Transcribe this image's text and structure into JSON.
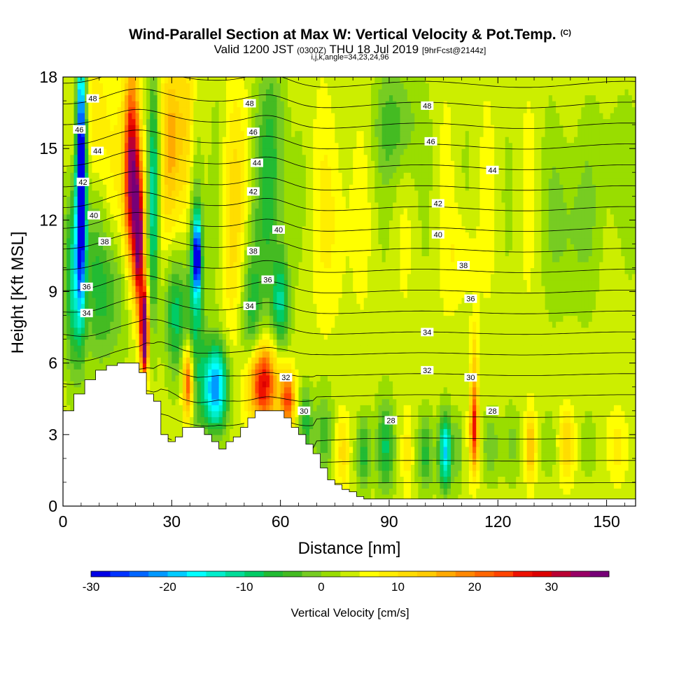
{
  "header": {
    "title": "Wind-Parallel Section at Max W: Vertical Velocity & Pot.Temp.",
    "copyright": "(C)",
    "valid_prefix": "Valid 1200 JST",
    "valid_utc": "(0300Z)",
    "valid_date": "THU 18 Jul 2019",
    "forecast": "[9hrFcst@2144z]",
    "indices": "i,j,k,angle=34,23,24,96"
  },
  "chart_data": {
    "type": "heatmap",
    "xlabel": "Distance [nm]",
    "ylabel": "Height [Kft MSL]",
    "xlim": [
      0,
      158
    ],
    "ylim": [
      0,
      18
    ],
    "xticks": [
      0,
      30,
      60,
      90,
      120,
      150
    ],
    "yticks": [
      0,
      3,
      6,
      9,
      12,
      15,
      18
    ],
    "colorbar": {
      "label": "Vertical Velocity [cm/s]",
      "min": -30,
      "max": 35,
      "step": 2.5,
      "ticks": [
        -30,
        -20,
        -10,
        0,
        10,
        20,
        30
      ],
      "colors": [
        "#0000e6",
        "#0033ff",
        "#0066ff",
        "#0099ff",
        "#00ccff",
        "#00ffff",
        "#00eecc",
        "#00dd99",
        "#00cc66",
        "#22bb33",
        "#44bb22",
        "#77cc22",
        "#99dd00",
        "#ccee00",
        "#ffff00",
        "#ffee00",
        "#ffdd00",
        "#ffcc00",
        "#ffaa00",
        "#ff8800",
        "#ff6600",
        "#ff4400",
        "#ee1100",
        "#dd0000",
        "#bb0033",
        "#990066",
        "#770077"
      ]
    },
    "theta_contours": {
      "units": "K (labels)",
      "labels": [
        {
          "value": 48,
          "x": 8.2,
          "y": 17.1
        },
        {
          "value": 48,
          "x": 51.5,
          "y": 16.9
        },
        {
          "value": 48,
          "x": 100.5,
          "y": 16.8
        },
        {
          "value": 46,
          "x": 4.5,
          "y": 15.8
        },
        {
          "value": 46,
          "x": 52.5,
          "y": 15.7
        },
        {
          "value": 46,
          "x": 101.5,
          "y": 15.3
        },
        {
          "value": 44,
          "x": 9.5,
          "y": 14.9
        },
        {
          "value": 44,
          "x": 53.5,
          "y": 14.4
        },
        {
          "value": 44,
          "x": 118.5,
          "y": 14.1
        },
        {
          "value": 42,
          "x": 5.5,
          "y": 13.6
        },
        {
          "value": 42,
          "x": 52.5,
          "y": 13.2
        },
        {
          "value": 42,
          "x": 103.5,
          "y": 12.7
        },
        {
          "value": 40,
          "x": 8.5,
          "y": 12.2
        },
        {
          "value": 40,
          "x": 59.5,
          "y": 11.6
        },
        {
          "value": 40,
          "x": 103.5,
          "y": 11.4
        },
        {
          "value": 38,
          "x": 11.5,
          "y": 11.1
        },
        {
          "value": 38,
          "x": 52.5,
          "y": 10.7
        },
        {
          "value": 38,
          "x": 110.5,
          "y": 10.1
        },
        {
          "value": 36,
          "x": 6.5,
          "y": 9.2
        },
        {
          "value": 36,
          "x": 56.5,
          "y": 9.5
        },
        {
          "value": 36,
          "x": 112.5,
          "y": 8.7
        },
        {
          "value": 34,
          "x": 6.5,
          "y": 8.1
        },
        {
          "value": 34,
          "x": 51.5,
          "y": 8.4
        },
        {
          "value": 34,
          "x": 100.5,
          "y": 7.3
        },
        {
          "value": 32,
          "x": 61.5,
          "y": 5.4
        },
        {
          "value": 32,
          "x": 100.5,
          "y": 5.7
        },
        {
          "value": 30,
          "x": 66.5,
          "y": 4.0
        },
        {
          "value": 30,
          "x": 112.5,
          "y": 5.4
        },
        {
          "value": 28,
          "x": 90.5,
          "y": 3.6
        },
        {
          "value": 28,
          "x": 118.5,
          "y": 4.0
        }
      ]
    },
    "terrain": {
      "x": [
        0,
        3,
        6,
        9,
        12,
        15,
        18,
        21,
        23,
        25,
        27,
        29,
        31,
        33,
        35,
        37,
        39,
        41,
        43,
        45,
        47,
        49,
        51,
        53,
        55,
        57,
        59,
        61,
        63,
        65,
        67,
        69,
        71,
        73,
        75,
        77,
        79,
        81,
        83,
        85,
        158
      ],
      "y": [
        4.0,
        4.7,
        5.3,
        5.7,
        5.9,
        6.0,
        6.0,
        5.6,
        4.7,
        4.4,
        3.0,
        2.7,
        2.9,
        3.3,
        3.3,
        3.3,
        3.0,
        2.7,
        2.4,
        2.7,
        2.9,
        3.3,
        3.7,
        4.0,
        4.0,
        4.0,
        4.0,
        3.7,
        3.3,
        3.0,
        2.6,
        2.2,
        1.6,
        1.1,
        0.9,
        0.7,
        0.6,
        0.4,
        0.3,
        0.3,
        0.3
      ]
    }
  }
}
